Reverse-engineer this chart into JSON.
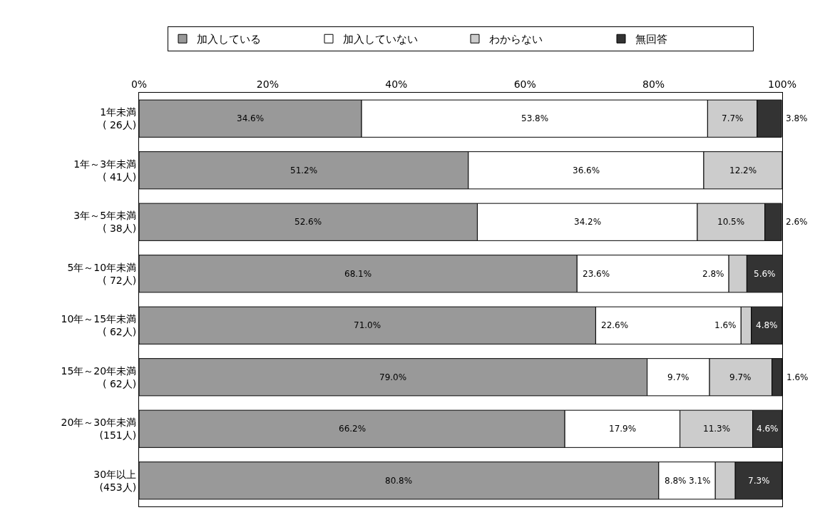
{
  "chart_data": {
    "type": "bar",
    "orientation": "horizontal",
    "stacked": true,
    "legend": "top",
    "categories": [
      "1年未満\n( 26人)",
      "1年～3年未満\n( 41人)",
      "3年～5年未満\n( 38人)",
      "5年～10年未満\n( 72人)",
      "10年～15年未満\n( 62人)",
      "15年～20年未満\n( 62人)",
      "20年～30年未満\n(151人)",
      "30年以上\n(453人)"
    ],
    "xlim": [
      0,
      100
    ],
    "xticks": [
      {
        "value": 0,
        "label": "0%"
      },
      {
        "value": 20,
        "label": "20%"
      },
      {
        "value": 40,
        "label": "40%"
      },
      {
        "value": 60,
        "label": "60%"
      },
      {
        "value": 80,
        "label": "80%"
      },
      {
        "value": 100,
        "label": "100%"
      }
    ],
    "series": [
      {
        "name": "加入している",
        "color": "#999999",
        "values": [
          34.6,
          51.2,
          52.6,
          68.1,
          71.0,
          79.0,
          66.2,
          80.8
        ],
        "value_labels": [
          "34.6%",
          "51.2%",
          "52.6%",
          "68.1%",
          "71.0%",
          "79.0%",
          "66.2%",
          "80.8%"
        ]
      },
      {
        "name": "加入していない",
        "color": "#ffffff",
        "values": [
          53.8,
          36.6,
          34.2,
          23.6,
          22.6,
          9.7,
          17.9,
          8.8
        ],
        "value_labels": [
          "53.8%",
          "36.6%",
          "34.2%",
          "23.6%",
          "22.6%",
          "9.7%",
          "17.9%",
          "8.8%"
        ]
      },
      {
        "name": "わからない",
        "color": "#cccccc",
        "values": [
          7.7,
          12.2,
          10.5,
          2.8,
          1.6,
          9.7,
          11.3,
          3.1
        ],
        "value_labels": [
          "7.7%",
          "12.2%",
          "10.5%",
          "2.8%",
          "1.6%",
          "9.7%",
          "11.3%",
          "3.1%"
        ]
      },
      {
        "name": "無回答",
        "color": "#333333",
        "values": [
          3.8,
          null,
          2.6,
          5.6,
          4.8,
          1.6,
          4.6,
          7.3
        ],
        "value_labels": [
          "3.8%",
          null,
          "2.6%",
          "5.6%",
          "4.8%",
          "1.6%",
          "4.6%",
          "7.3%"
        ]
      }
    ]
  }
}
